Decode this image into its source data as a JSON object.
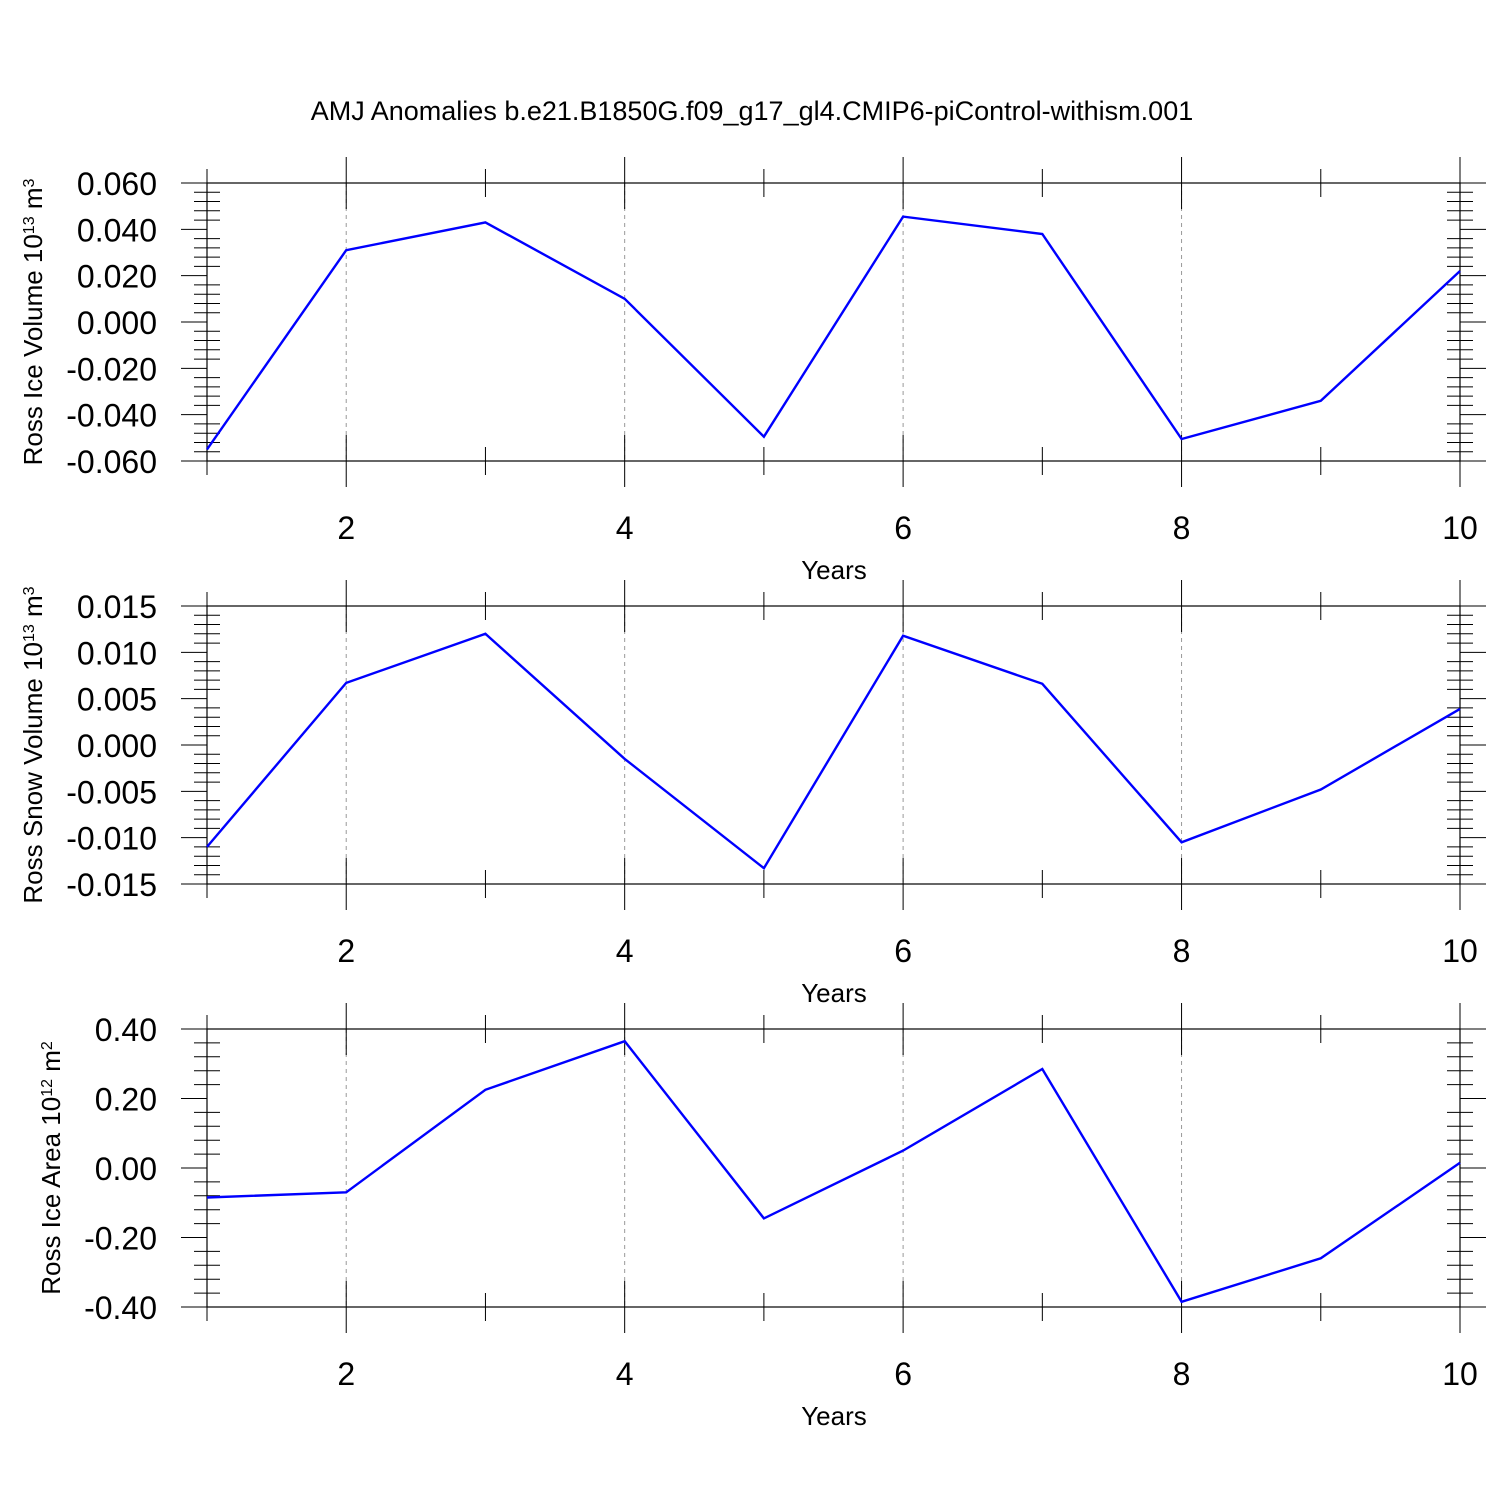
{
  "chart_data": [
    {
      "type": "line",
      "title": "AMJ Anomalies b.e21.B1850G.f09_g17_gl4.CMIP6-piControl-withism.001",
      "xlabel": "Years",
      "ylabel": {
        "base": "Ross Ice Volume 10",
        "exp": "13",
        "unit": " m",
        "unit_exp": "3"
      },
      "xlim": [
        1,
        10
      ],
      "ylim": [
        -0.06,
        0.06
      ],
      "x_ticks": [
        2,
        4,
        6,
        8,
        10
      ],
      "x_tick_labels": [
        "2",
        "4",
        "6",
        "8",
        "10"
      ],
      "y_ticks": [
        -0.06,
        -0.04,
        -0.02,
        0.0,
        0.02,
        0.04,
        0.06
      ],
      "y_tick_labels": [
        "-0.060",
        "-0.040",
        "-0.020",
        "0.000",
        "0.020",
        "0.040",
        "0.060"
      ],
      "grid": "vertical dashed at major x ticks",
      "series": [
        {
          "color": "#0000ff",
          "x": [
            1,
            2,
            3,
            4,
            5,
            6,
            7,
            8,
            9,
            10
          ],
          "values": [
            -0.055,
            0.031,
            0.043,
            0.01,
            -0.0495,
            0.0455,
            0.038,
            -0.0505,
            -0.034,
            0.022
          ]
        }
      ]
    },
    {
      "type": "line",
      "xlabel": "Years",
      "ylabel": {
        "base": "Ross Snow Volume 10",
        "exp": "13",
        "unit": " m",
        "unit_exp": "3"
      },
      "xlim": [
        1,
        10
      ],
      "ylim": [
        -0.015,
        0.015
      ],
      "x_ticks": [
        2,
        4,
        6,
        8,
        10
      ],
      "x_tick_labels": [
        "2",
        "4",
        "6",
        "8",
        "10"
      ],
      "y_ticks": [
        -0.015,
        -0.01,
        -0.005,
        0.0,
        0.005,
        0.01,
        0.015
      ],
      "y_tick_labels": [
        "-0.015",
        "-0.010",
        "-0.005",
        "0.000",
        "0.005",
        "0.010",
        "0.015"
      ],
      "grid": "vertical dashed at major x ticks",
      "series": [
        {
          "color": "#0000ff",
          "x": [
            1,
            2,
            3,
            4,
            5,
            6,
            7,
            8,
            9,
            10
          ],
          "values": [
            -0.011,
            0.0067,
            0.012,
            -0.0015,
            -0.0133,
            0.0118,
            0.0066,
            -0.0105,
            -0.0048,
            0.0039
          ]
        }
      ]
    },
    {
      "type": "line",
      "xlabel": "Years",
      "ylabel": {
        "base": "Ross Ice Area 10",
        "exp": "12",
        "unit": " m",
        "unit_exp": "2"
      },
      "xlim": [
        1,
        10
      ],
      "ylim": [
        -0.4,
        0.4
      ],
      "x_ticks": [
        2,
        4,
        6,
        8,
        10
      ],
      "x_tick_labels": [
        "2",
        "4",
        "6",
        "8",
        "10"
      ],
      "y_ticks": [
        -0.4,
        -0.2,
        0.0,
        0.2,
        0.4
      ],
      "y_tick_labels": [
        "-0.40",
        "-0.20",
        "0.00",
        "0.20",
        "0.40"
      ],
      "grid": "vertical dashed at major x ticks",
      "series": [
        {
          "color": "#0000ff",
          "x": [
            1,
            2,
            3,
            4,
            5,
            6,
            7,
            8,
            9,
            10
          ],
          "values": [
            -0.085,
            -0.07,
            0.225,
            0.365,
            -0.145,
            0.05,
            0.285,
            -0.385,
            -0.26,
            0.015
          ]
        }
      ]
    }
  ]
}
